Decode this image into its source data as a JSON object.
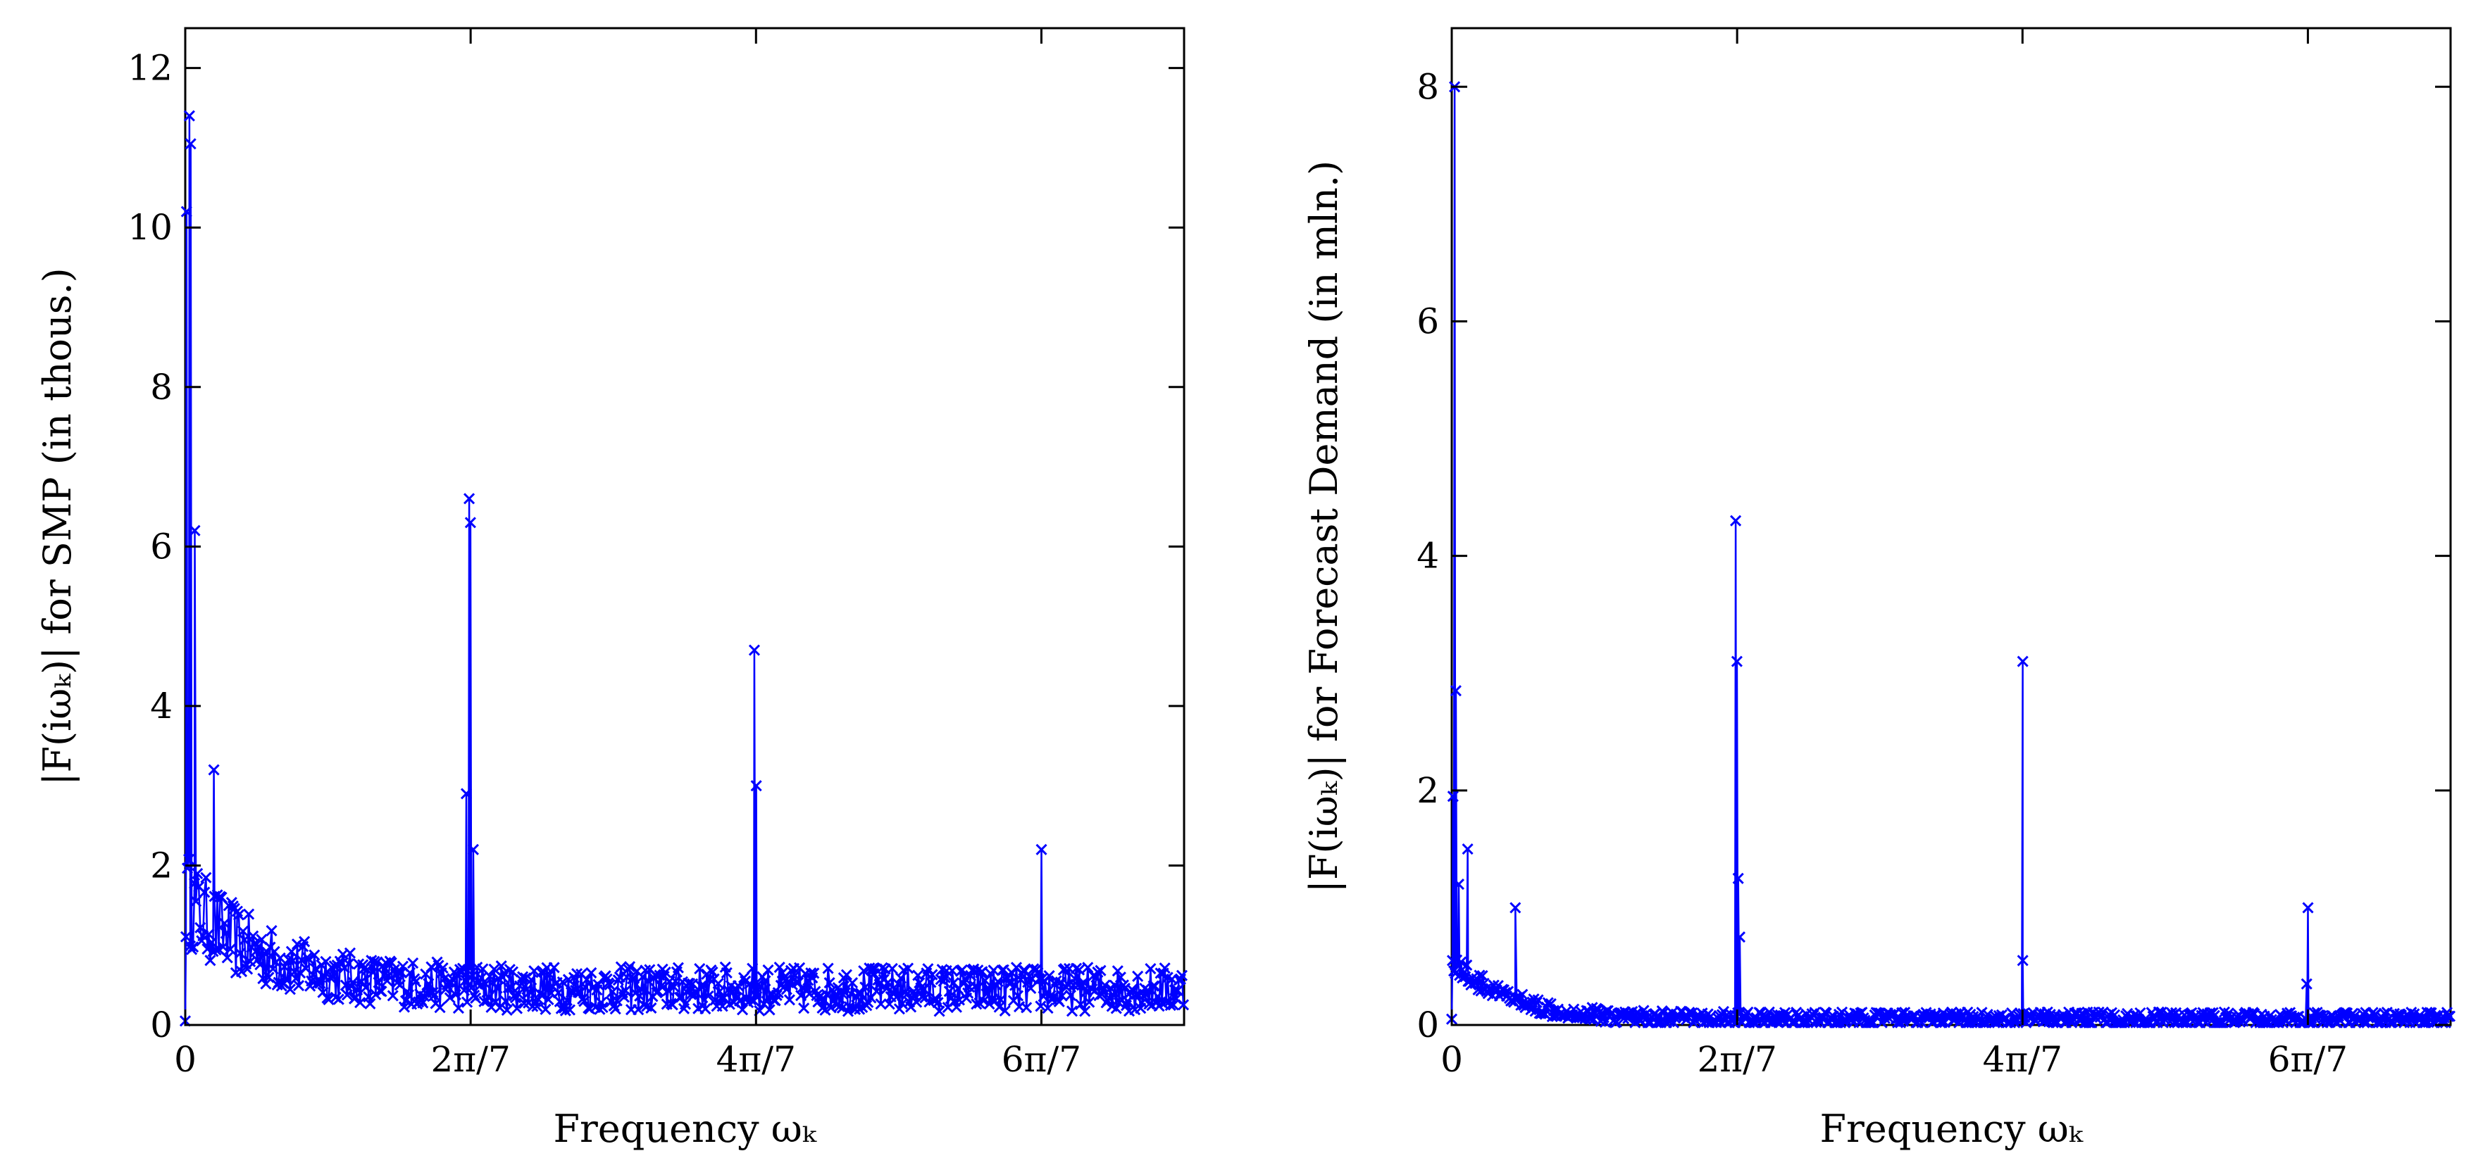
{
  "chart_data": [
    {
      "type": "line",
      "title": "",
      "xlabel": "Frequency ωₖ",
      "ylabel": "|F(iωₖ)| for SMP (in thous.)",
      "xlim": [
        0,
        3.14159
      ],
      "ylim": [
        0,
        12.5
      ],
      "x_ticks": [
        {
          "value": 0,
          "label": "0"
        },
        {
          "value": 0.8976,
          "label": "2π/7"
        },
        {
          "value": 1.7952,
          "label": "4π/7"
        },
        {
          "value": 2.6928,
          "label": "6π/7"
        }
      ],
      "y_ticks": [
        0,
        2,
        4,
        6,
        8,
        10,
        12
      ],
      "grid": false,
      "marker": "x",
      "color": "#0000ff",
      "peaks": [
        {
          "x": 0.0,
          "y": 0.05
        },
        {
          "x": 0.004,
          "y": 10.2
        },
        {
          "x": 0.013,
          "y": 11.4
        },
        {
          "x": 0.017,
          "y": 11.05
        },
        {
          "x": 0.03,
          "y": 6.2
        },
        {
          "x": 0.09,
          "y": 3.2
        },
        {
          "x": 0.884,
          "y": 2.9
        },
        {
          "x": 0.893,
          "y": 6.6
        },
        {
          "x": 0.897,
          "y": 6.3
        },
        {
          "x": 0.906,
          "y": 2.2
        },
        {
          "x": 1.79,
          "y": 4.7
        },
        {
          "x": 1.796,
          "y": 3.0
        },
        {
          "x": 2.693,
          "y": 2.2
        }
      ],
      "noise": {
        "start_level": 1.6,
        "decay": 0.25,
        "base_level": 0.45,
        "spread": 0.28,
        "count": 700
      }
    },
    {
      "type": "line",
      "title": "",
      "xlabel": "Frequency ωₖ",
      "ylabel": "|F(iωₖ)| for Forecast Demand (in mln.)",
      "xlim": [
        0,
        3.14159
      ],
      "ylim": [
        0,
        8.5
      ],
      "x_ticks": [
        {
          "value": 0,
          "label": "0"
        },
        {
          "value": 0.8976,
          "label": "2π/7"
        },
        {
          "value": 1.7952,
          "label": "4π/7"
        },
        {
          "value": 2.6928,
          "label": "6π/7"
        }
      ],
      "y_ticks": [
        0,
        2,
        4,
        6,
        8
      ],
      "grid": false,
      "marker": "x",
      "color": "#0000ff",
      "peaks": [
        {
          "x": 0.0,
          "y": 0.05
        },
        {
          "x": 0.004,
          "y": 1.95
        },
        {
          "x": 0.009,
          "y": 8.0
        },
        {
          "x": 0.013,
          "y": 2.85
        },
        {
          "x": 0.022,
          "y": 1.2
        },
        {
          "x": 0.05,
          "y": 1.5
        },
        {
          "x": 0.2,
          "y": 1.0
        },
        {
          "x": 0.893,
          "y": 4.3
        },
        {
          "x": 0.897,
          "y": 3.1
        },
        {
          "x": 0.901,
          "y": 1.25
        },
        {
          "x": 0.906,
          "y": 0.75
        },
        {
          "x": 1.796,
          "y": 3.1
        },
        {
          "x": 1.796,
          "y": 0.55
        },
        {
          "x": 2.693,
          "y": 1.0
        },
        {
          "x": 2.689,
          "y": 0.35
        }
      ],
      "noise": {
        "start_level": 0.55,
        "decay": 0.18,
        "base_level": 0.05,
        "spread": 0.06,
        "count": 700
      }
    }
  ]
}
